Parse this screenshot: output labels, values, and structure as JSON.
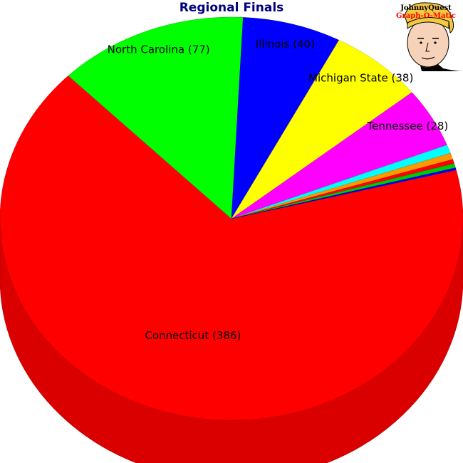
{
  "chart_data": {
    "type": "pie",
    "title": "Regional Finals",
    "slices": [
      {
        "label": "Connecticut (386)",
        "value": 386,
        "color": "#ff0000"
      },
      {
        "label": "North Carolina (77)",
        "value": 77,
        "color": "#00ff00"
      },
      {
        "label": "Illinois (40)",
        "value": 40,
        "color": "#0000ff"
      },
      {
        "label": "Michigan State (38)",
        "value": 38,
        "color": "#ffff00"
      },
      {
        "label": "Tennessee (28)",
        "value": 28,
        "color": "#ff00ff"
      },
      {
        "label": "",
        "value": 4,
        "color": "#00ffff"
      },
      {
        "label": "",
        "value": 3,
        "color": "#ff9900"
      },
      {
        "label": "",
        "value": 2,
        "color": "#ff0000"
      },
      {
        "label": "",
        "value": 2,
        "color": "#00cc00"
      },
      {
        "label": "",
        "value": 1,
        "color": "#0000ff"
      }
    ],
    "style": "3d-tilted"
  },
  "logo": {
    "line1": "JohnnyQuest",
    "line2": "Graph-O-Matic"
  }
}
